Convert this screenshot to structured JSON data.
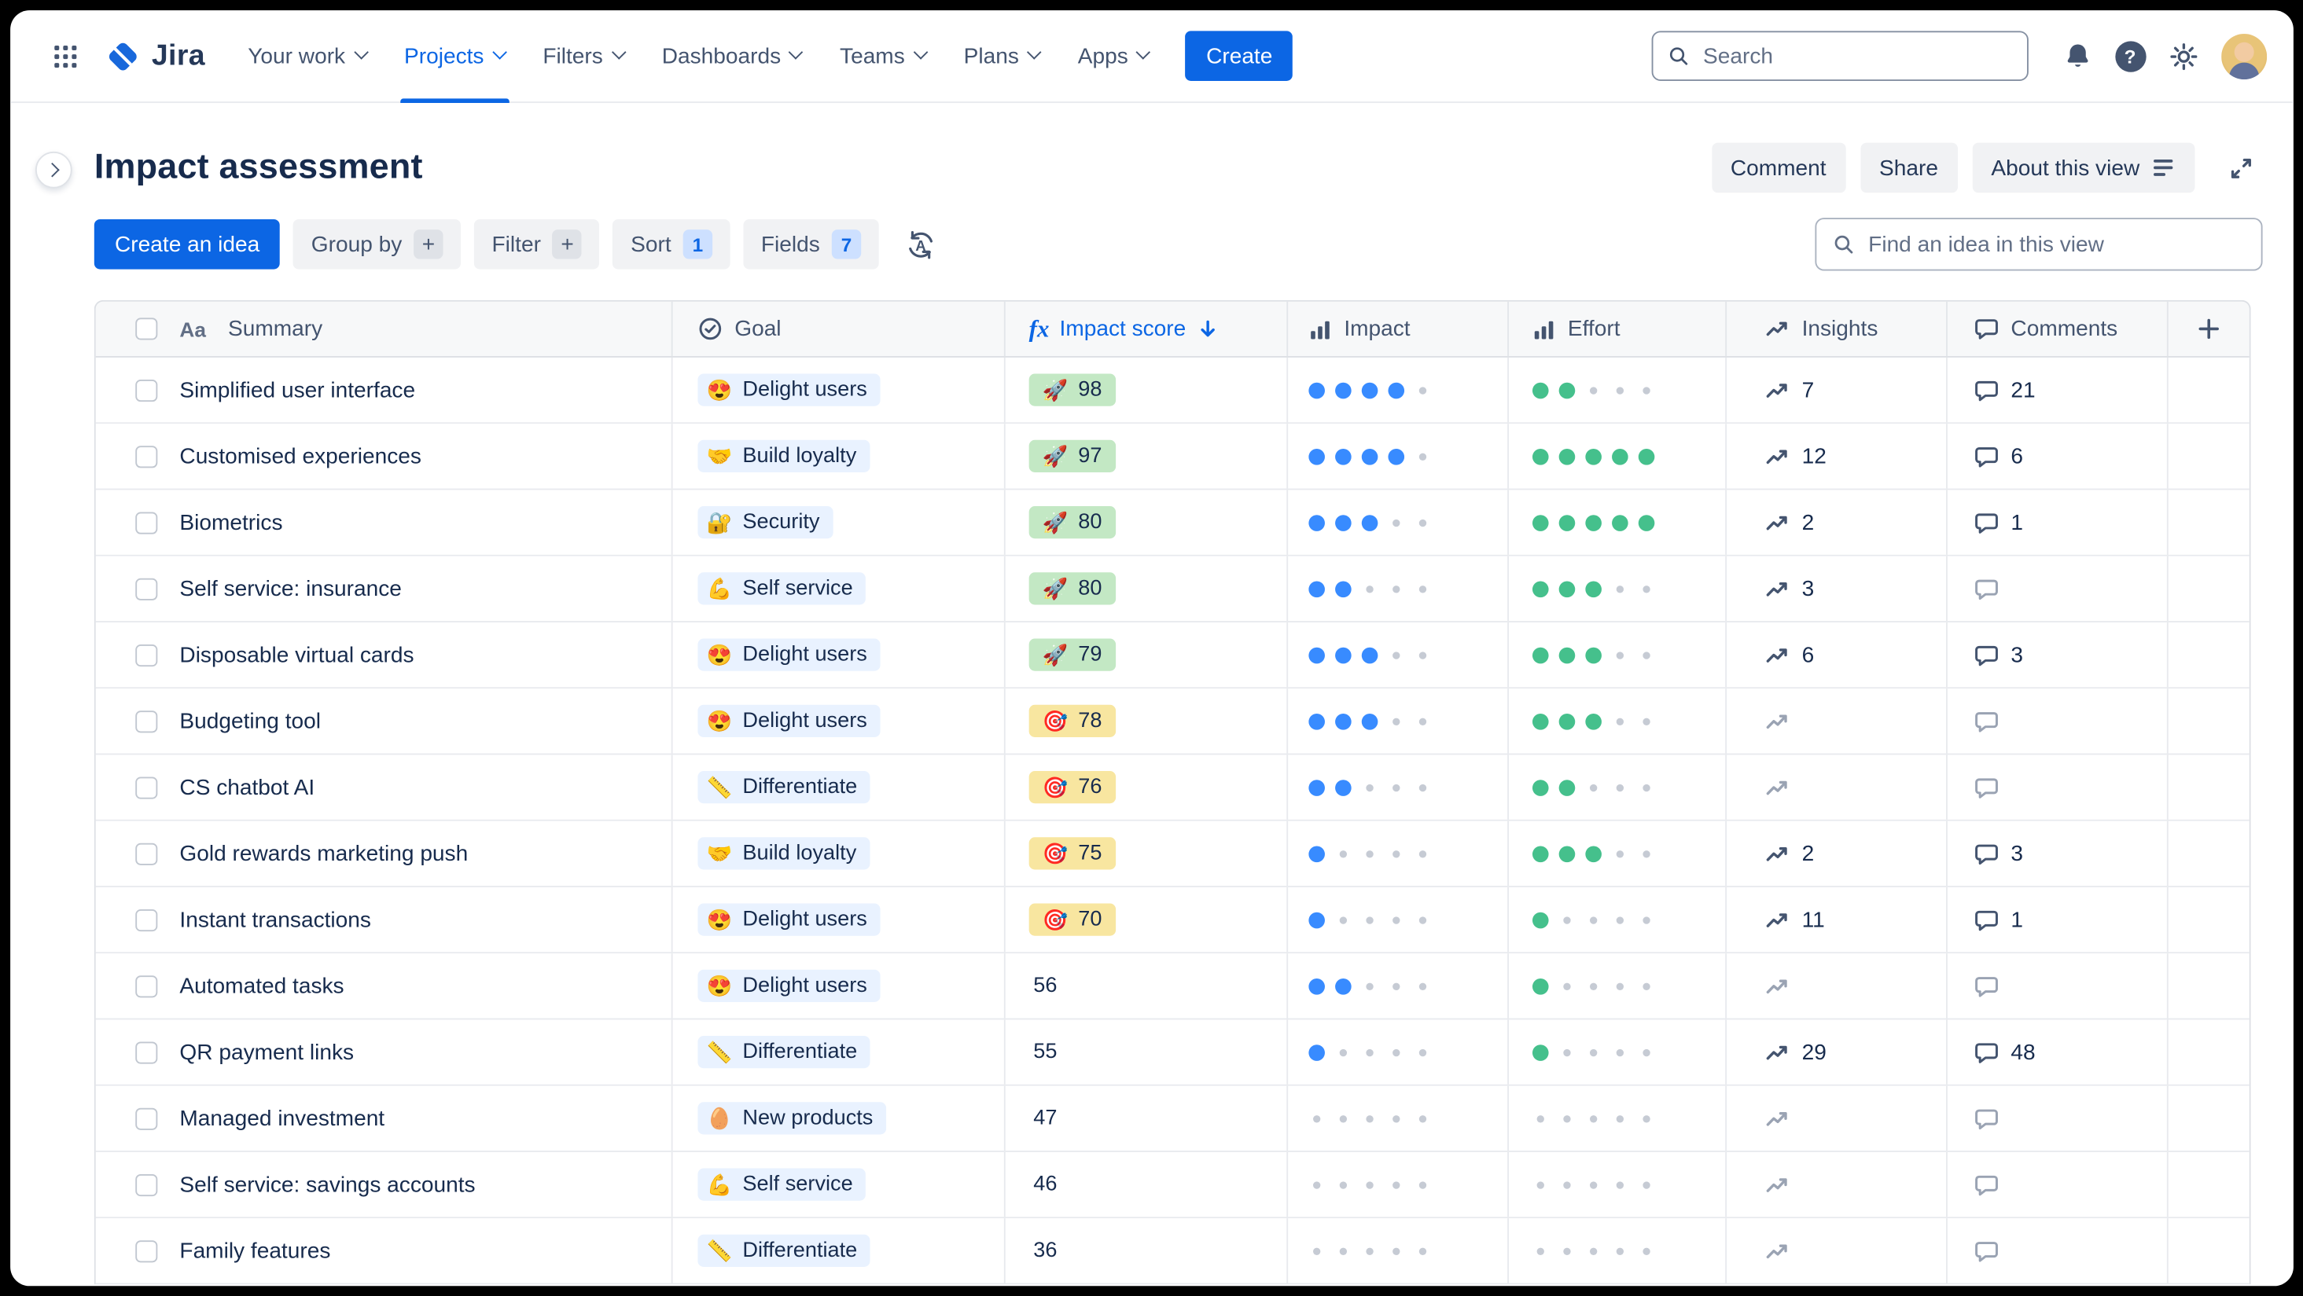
{
  "nav": {
    "logo": "Jira",
    "items": [
      {
        "label": "Your work"
      },
      {
        "label": "Projects",
        "active": true
      },
      {
        "label": "Filters"
      },
      {
        "label": "Dashboards"
      },
      {
        "label": "Teams"
      },
      {
        "label": "Plans"
      },
      {
        "label": "Apps"
      }
    ],
    "create_label": "Create",
    "search_placeholder": "Search"
  },
  "header": {
    "title": "Impact assessment",
    "comment_label": "Comment",
    "share_label": "Share",
    "about_label": "About this view"
  },
  "toolbar": {
    "create_idea_label": "Create an idea",
    "group_by_label": "Group by",
    "filter_label": "Filter",
    "sort_label": "Sort",
    "sort_count": "1",
    "fields_label": "Fields",
    "fields_count": "7",
    "find_placeholder": "Find an idea in this view"
  },
  "icons": {
    "aa": "Aa",
    "fx": "fx",
    "plus": "+",
    "help": "?"
  },
  "table": {
    "columns": [
      {
        "label": "Summary"
      },
      {
        "label": "Goal"
      },
      {
        "label": "Impact score"
      },
      {
        "label": "Impact"
      },
      {
        "label": "Effort"
      },
      {
        "label": "Insights"
      },
      {
        "label": "Comments"
      }
    ],
    "rows": [
      {
        "summary": "Simplified user interface",
        "goal": {
          "emoji": "😍",
          "label": "Delight users"
        },
        "score": {
          "value": "98",
          "tone": "green",
          "emoji": "🚀"
        },
        "impact": 4,
        "effort": 2,
        "insights": "7",
        "comments": "21"
      },
      {
        "summary": "Customised experiences",
        "goal": {
          "emoji": "🤝",
          "label": "Build loyalty"
        },
        "score": {
          "value": "97",
          "tone": "green",
          "emoji": "🚀"
        },
        "impact": 4,
        "effort": 5,
        "insights": "12",
        "comments": "6"
      },
      {
        "summary": "Biometrics",
        "goal": {
          "emoji": "🔐",
          "label": "Security"
        },
        "score": {
          "value": "80",
          "tone": "green",
          "emoji": "🚀"
        },
        "impact": 3,
        "effort": 5,
        "insights": "2",
        "comments": "1"
      },
      {
        "summary": "Self service: insurance",
        "goal": {
          "emoji": "💪",
          "label": "Self service"
        },
        "score": {
          "value": "80",
          "tone": "green",
          "emoji": "🚀"
        },
        "impact": 2,
        "effort": 3,
        "insights": "3",
        "comments": ""
      },
      {
        "summary": "Disposable virtual cards",
        "goal": {
          "emoji": "😍",
          "label": "Delight users"
        },
        "score": {
          "value": "79",
          "tone": "green",
          "emoji": "🚀"
        },
        "impact": 3,
        "effort": 3,
        "insights": "6",
        "comments": "3"
      },
      {
        "summary": "Budgeting tool",
        "goal": {
          "emoji": "😍",
          "label": "Delight users"
        },
        "score": {
          "value": "78",
          "tone": "yellow",
          "emoji": "🎯"
        },
        "impact": 3,
        "effort": 3,
        "insights": "",
        "comments": ""
      },
      {
        "summary": "CS chatbot AI",
        "goal": {
          "emoji": "📏",
          "label": "Differentiate"
        },
        "score": {
          "value": "76",
          "tone": "yellow",
          "emoji": "🎯"
        },
        "impact": 2,
        "effort": 2,
        "insights": "",
        "comments": ""
      },
      {
        "summary": "Gold rewards marketing push",
        "goal": {
          "emoji": "🤝",
          "label": "Build loyalty"
        },
        "score": {
          "value": "75",
          "tone": "yellow",
          "emoji": "🎯"
        },
        "impact": 1,
        "effort": 3,
        "insights": "2",
        "comments": "3"
      },
      {
        "summary": "Instant transactions",
        "goal": {
          "emoji": "😍",
          "label": "Delight users"
        },
        "score": {
          "value": "70",
          "tone": "yellow",
          "emoji": "🎯"
        },
        "impact": 1,
        "effort": 1,
        "insights": "11",
        "comments": "1"
      },
      {
        "summary": "Automated tasks",
        "goal": {
          "emoji": "😍",
          "label": "Delight users"
        },
        "score": {
          "value": "56",
          "tone": "plain"
        },
        "impact": 2,
        "effort": 1,
        "insights": "",
        "comments": ""
      },
      {
        "summary": "QR payment links",
        "goal": {
          "emoji": "📏",
          "label": "Differentiate"
        },
        "score": {
          "value": "55",
          "tone": "plain"
        },
        "impact": 1,
        "effort": 1,
        "insights": "29",
        "comments": "48"
      },
      {
        "summary": "Managed investment",
        "goal": {
          "emoji": "🥚",
          "label": "New products"
        },
        "score": {
          "value": "47",
          "tone": "plain"
        },
        "impact": 0,
        "effort": 0,
        "insights": "",
        "comments": ""
      },
      {
        "summary": "Self service: savings accounts",
        "goal": {
          "emoji": "💪",
          "label": "Self service"
        },
        "score": {
          "value": "46",
          "tone": "plain"
        },
        "impact": 0,
        "effort": 0,
        "insights": "",
        "comments": ""
      },
      {
        "summary": "Family features",
        "goal": {
          "emoji": "📏",
          "label": "Differentiate"
        },
        "score": {
          "value": "36",
          "tone": "plain"
        },
        "impact": 0,
        "effort": 0,
        "insights": "",
        "comments": ""
      }
    ]
  },
  "colors": {
    "accent": "#0C66E4",
    "dot-blue": "#388BFF",
    "dot-green": "#45C08C",
    "badge-green": "#C3E8C4",
    "badge-yellow": "#F8E6A0",
    "goal-badge": "#E9F2FF"
  }
}
